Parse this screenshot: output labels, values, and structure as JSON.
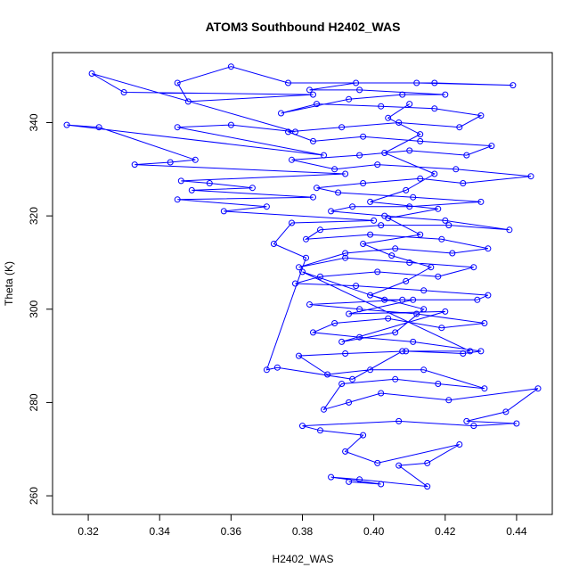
{
  "chart_data": {
    "type": "scatter",
    "mode": "lines+points",
    "title": "ATOM3 Southbound H2402_WAS",
    "xlabel": "H2402_WAS",
    "ylabel": "Theta (K)",
    "xlim": [
      0.31,
      0.45
    ],
    "ylim": [
      256,
      355
    ],
    "xticks": [
      0.32,
      0.34,
      0.36,
      0.38,
      0.4,
      0.42,
      0.44
    ],
    "xtick_labels": [
      "0.32",
      "0.34",
      "0.36",
      "0.38",
      "0.40",
      "0.42",
      "0.44"
    ],
    "yticks": [
      260,
      280,
      300,
      320,
      340
    ],
    "ytick_labels": [
      "260",
      "280",
      "300",
      "320",
      "340"
    ],
    "grid": false,
    "series_color": "#0000ff",
    "marker": "open-circle",
    "series": [
      {
        "points": [
          [
            0.393,
            263
          ],
          [
            0.402,
            262.5
          ],
          [
            0.388,
            264
          ],
          [
            0.396,
            263.5
          ],
          [
            0.415,
            262
          ],
          [
            0.407,
            266.5
          ],
          [
            0.415,
            267
          ],
          [
            0.424,
            271
          ],
          [
            0.401,
            267
          ],
          [
            0.392,
            269.5
          ],
          [
            0.397,
            273
          ],
          [
            0.385,
            274
          ],
          [
            0.38,
            275
          ],
          [
            0.407,
            276
          ],
          [
            0.428,
            275
          ],
          [
            0.44,
            275.5
          ],
          [
            0.426,
            276
          ],
          [
            0.437,
            278
          ],
          [
            0.446,
            283
          ],
          [
            0.421,
            280.5
          ],
          [
            0.402,
            282
          ],
          [
            0.393,
            280
          ],
          [
            0.386,
            278.5
          ],
          [
            0.391,
            284
          ],
          [
            0.406,
            285
          ],
          [
            0.418,
            284
          ],
          [
            0.431,
            283
          ],
          [
            0.414,
            287
          ],
          [
            0.399,
            287
          ],
          [
            0.387,
            286
          ],
          [
            0.379,
            290
          ],
          [
            0.392,
            290.5
          ],
          [
            0.409,
            291
          ],
          [
            0.425,
            290.5
          ],
          [
            0.43,
            291
          ],
          [
            0.411,
            293
          ],
          [
            0.396,
            294
          ],
          [
            0.383,
            295
          ],
          [
            0.389,
            297
          ],
          [
            0.404,
            298
          ],
          [
            0.419,
            296
          ],
          [
            0.431,
            297
          ],
          [
            0.412,
            299
          ],
          [
            0.396,
            300
          ],
          [
            0.382,
            301
          ],
          [
            0.408,
            302
          ],
          [
            0.429,
            302
          ],
          [
            0.432,
            303
          ],
          [
            0.414,
            304
          ],
          [
            0.395,
            305
          ],
          [
            0.378,
            305.5
          ],
          [
            0.385,
            307
          ],
          [
            0.401,
            308
          ],
          [
            0.418,
            307
          ],
          [
            0.428,
            309
          ],
          [
            0.41,
            310
          ],
          [
            0.392,
            311
          ],
          [
            0.379,
            309
          ],
          [
            0.392,
            312
          ],
          [
            0.406,
            313
          ],
          [
            0.422,
            312
          ],
          [
            0.432,
            313
          ],
          [
            0.419,
            315
          ],
          [
            0.399,
            316
          ],
          [
            0.381,
            315
          ],
          [
            0.385,
            317
          ],
          [
            0.402,
            318
          ],
          [
            0.421,
            318
          ],
          [
            0.438,
            317
          ],
          [
            0.42,
            319
          ],
          [
            0.403,
            320
          ],
          [
            0.388,
            321
          ],
          [
            0.394,
            322
          ],
          [
            0.41,
            322
          ],
          [
            0.43,
            323
          ],
          [
            0.411,
            324
          ],
          [
            0.39,
            325
          ],
          [
            0.384,
            326
          ],
          [
            0.397,
            327
          ],
          [
            0.413,
            328
          ],
          [
            0.425,
            327
          ],
          [
            0.444,
            328.5
          ],
          [
            0.423,
            330
          ],
          [
            0.401,
            331
          ],
          [
            0.389,
            330
          ],
          [
            0.377,
            332
          ],
          [
            0.396,
            333
          ],
          [
            0.41,
            334
          ],
          [
            0.426,
            333
          ],
          [
            0.433,
            335
          ],
          [
            0.413,
            336
          ],
          [
            0.397,
            337
          ],
          [
            0.383,
            336
          ],
          [
            0.376,
            338
          ],
          [
            0.391,
            339
          ],
          [
            0.407,
            340
          ],
          [
            0.424,
            339
          ],
          [
            0.43,
            341.5
          ],
          [
            0.417,
            343
          ],
          [
            0.402,
            343.5
          ],
          [
            0.384,
            344
          ],
          [
            0.374,
            342
          ],
          [
            0.393,
            345
          ],
          [
            0.408,
            346
          ],
          [
            0.42,
            346
          ],
          [
            0.396,
            347
          ],
          [
            0.382,
            347
          ],
          [
            0.395,
            348.5
          ],
          [
            0.412,
            348.5
          ],
          [
            0.439,
            348
          ],
          [
            0.417,
            348.5
          ],
          [
            0.376,
            348.5
          ],
          [
            0.36,
            352
          ],
          [
            0.345,
            348.5
          ],
          [
            0.348,
            344.5
          ],
          [
            0.383,
            346
          ],
          [
            0.33,
            346.5
          ],
          [
            0.321,
            350.5
          ],
          [
            0.378,
            338
          ],
          [
            0.36,
            339.5
          ],
          [
            0.345,
            339
          ],
          [
            0.386,
            333
          ],
          [
            0.314,
            339.5
          ],
          [
            0.323,
            339
          ],
          [
            0.35,
            332
          ],
          [
            0.343,
            331.5
          ],
          [
            0.333,
            331
          ],
          [
            0.392,
            329
          ],
          [
            0.346,
            327.5
          ],
          [
            0.354,
            327
          ],
          [
            0.366,
            326
          ],
          [
            0.349,
            325.5
          ],
          [
            0.383,
            324
          ],
          [
            0.345,
            323.5
          ],
          [
            0.37,
            322
          ],
          [
            0.358,
            321
          ],
          [
            0.4,
            319
          ],
          [
            0.377,
            318.5
          ],
          [
            0.372,
            314
          ],
          [
            0.381,
            311
          ],
          [
            0.37,
            287
          ],
          [
            0.373,
            287.5
          ],
          [
            0.394,
            285
          ],
          [
            0.408,
            291
          ],
          [
            0.427,
            291
          ],
          [
            0.38,
            308
          ],
          [
            0.403,
            302
          ],
          [
            0.411,
            302
          ],
          [
            0.393,
            299
          ],
          [
            0.42,
            299.5
          ],
          [
            0.391,
            293
          ],
          [
            0.406,
            295
          ],
          [
            0.414,
            300
          ],
          [
            0.399,
            303
          ],
          [
            0.409,
            306
          ],
          [
            0.416,
            309
          ],
          [
            0.405,
            311.5
          ],
          [
            0.397,
            314
          ],
          [
            0.413,
            316
          ],
          [
            0.404,
            319.5
          ],
          [
            0.418,
            321.5
          ],
          [
            0.399,
            323
          ],
          [
            0.409,
            325.5
          ],
          [
            0.417,
            329
          ],
          [
            0.403,
            333.5
          ],
          [
            0.413,
            337.5
          ],
          [
            0.404,
            341
          ],
          [
            0.41,
            344
          ]
        ]
      }
    ]
  }
}
